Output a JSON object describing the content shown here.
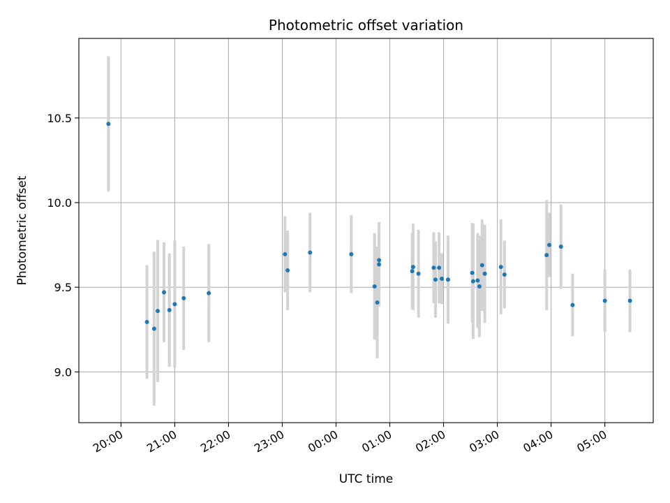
{
  "chart_data": {
    "type": "scatter",
    "title": "Photometric offset variation",
    "xlabel": "UTC time",
    "ylabel": "Photometric offset",
    "x_axis_type": "time",
    "x_range_hours": [
      "19:13",
      "05:54"
    ],
    "xlim": [
      "19:13",
      "05:54"
    ],
    "ylim": [
      8.7,
      10.97
    ],
    "x_ticks": [
      "20:00",
      "21:00",
      "22:00",
      "23:00",
      "00:00",
      "01:00",
      "02:00",
      "03:00",
      "04:00",
      "05:00"
    ],
    "y_ticks": [
      "9.0",
      "9.5",
      "10.0",
      "10.5"
    ],
    "grid": true,
    "point_color": "#1f77b4",
    "errorbar_color": "#d3d3d3",
    "points": [
      {
        "x": "19:46",
        "y": 10.465,
        "err": 0.4
      },
      {
        "x": "20:29",
        "y": 9.295,
        "err": 0.335
      },
      {
        "x": "20:37",
        "y": 9.255,
        "err": 0.455
      },
      {
        "x": "20:41",
        "y": 9.36,
        "err": 0.42
      },
      {
        "x": "20:48",
        "y": 9.47,
        "err": 0.295
      },
      {
        "x": "20:54",
        "y": 9.365,
        "err": 0.335
      },
      {
        "x": "21:00",
        "y": 9.4,
        "err": 0.375
      },
      {
        "x": "21:10",
        "y": 9.435,
        "err": 0.305
      },
      {
        "x": "21:38",
        "y": 9.465,
        "err": 0.29
      },
      {
        "x": "23:03",
        "y": 9.695,
        "err": 0.225
      },
      {
        "x": "23:06",
        "y": 9.6,
        "err": 0.235
      },
      {
        "x": "23:31",
        "y": 9.705,
        "err": 0.235
      },
      {
        "x": "00:17",
        "y": 9.695,
        "err": 0.23
      },
      {
        "x": "00:43",
        "y": 9.505,
        "err": 0.315
      },
      {
        "x": "00:46",
        "y": 9.41,
        "err": 0.33
      },
      {
        "x": "00:48",
        "y": 9.635,
        "err": 0.25
      },
      {
        "x": "00:48",
        "y": 9.66,
        "err": 0.225
      },
      {
        "x": "01:25",
        "y": 9.595,
        "err": 0.225
      },
      {
        "x": "01:26",
        "y": 9.62,
        "err": 0.255
      },
      {
        "x": "01:32",
        "y": 9.58,
        "err": 0.26
      },
      {
        "x": "01:49",
        "y": 9.615,
        "err": 0.21
      },
      {
        "x": "01:51",
        "y": 9.545,
        "err": 0.225
      },
      {
        "x": "01:55",
        "y": 9.615,
        "err": 0.21
      },
      {
        "x": "01:58",
        "y": 9.55,
        "err": 0.15
      },
      {
        "x": "02:05",
        "y": 9.545,
        "err": 0.26
      },
      {
        "x": "02:32",
        "y": 9.585,
        "err": 0.295
      },
      {
        "x": "02:33",
        "y": 9.535,
        "err": 0.34
      },
      {
        "x": "02:38",
        "y": 9.54,
        "err": 0.28
      },
      {
        "x": "02:40",
        "y": 9.505,
        "err": 0.3
      },
      {
        "x": "02:43",
        "y": 9.63,
        "err": 0.27
      },
      {
        "x": "02:46",
        "y": 9.58,
        "err": 0.29
      },
      {
        "x": "03:04",
        "y": 9.62,
        "err": 0.28
      },
      {
        "x": "03:08",
        "y": 9.575,
        "err": 0.2
      },
      {
        "x": "03:55",
        "y": 9.69,
        "err": 0.325
      },
      {
        "x": "03:58",
        "y": 9.75,
        "err": 0.19
      },
      {
        "x": "04:11",
        "y": 9.74,
        "err": 0.25
      },
      {
        "x": "04:24",
        "y": 9.395,
        "err": 0.185
      },
      {
        "x": "05:00",
        "y": 9.42,
        "err": 0.185
      },
      {
        "x": "05:28",
        "y": 9.42,
        "err": 0.185
      }
    ]
  }
}
